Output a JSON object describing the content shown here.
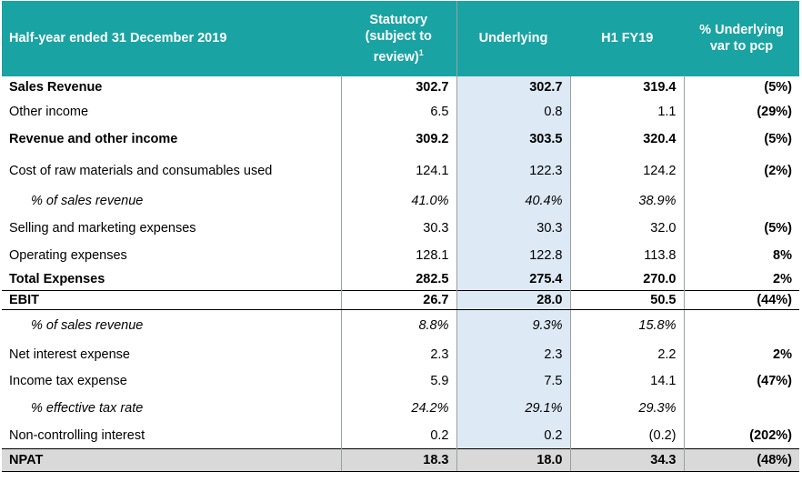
{
  "header": {
    "col0": "Half-year ended 31 December 2019",
    "col1_lines": [
      "Statutory",
      "(subject to",
      "review)"
    ],
    "col1_sup": "1",
    "col2": "Underlying",
    "col3": "H1 FY19",
    "col4_lines": [
      "% Underlying",
      "var to pcp"
    ]
  },
  "rows": [
    {
      "label": "Sales Revenue",
      "statutory": "302.7",
      "underlying": "302.7",
      "prior": "319.4",
      "var": "(5%)",
      "style": "bold"
    },
    {
      "label": "Other income",
      "statutory": "6.5",
      "underlying": "0.8",
      "prior": "1.1",
      "var": "(29%)",
      "style": "normal"
    },
    {
      "label": "Revenue and other income",
      "statutory": "309.2",
      "underlying": "303.5",
      "prior": "320.4",
      "var": "(5%)",
      "style": "bold"
    },
    {
      "label": "Cost of raw materials and consumables used",
      "statutory": "124.1",
      "underlying": "122.3",
      "prior": "124.2",
      "var": "(2%)",
      "style": "normal"
    },
    {
      "label": "% of sales revenue",
      "statutory": "41.0%",
      "underlying": "40.4%",
      "prior": "38.9%",
      "var": "",
      "style": "italic"
    },
    {
      "label": "Selling and marketing expenses",
      "statutory": "30.3",
      "underlying": "30.3",
      "prior": "32.0",
      "var": "(5%)",
      "style": "normal"
    },
    {
      "label": "Operating expenses",
      "statutory": "128.1",
      "underlying": "122.8",
      "prior": "113.8",
      "var": "8%",
      "style": "normal"
    },
    {
      "label": "Total Expenses",
      "statutory": "282.5",
      "underlying": "275.4",
      "prior": "270.0",
      "var": "2%",
      "style": "bold"
    },
    {
      "label": "EBIT",
      "statutory": "26.7",
      "underlying": "28.0",
      "prior": "50.5",
      "var": "(44%)",
      "style": "ebit"
    },
    {
      "label": "% of sales revenue",
      "statutory": "8.8%",
      "underlying": "9.3%",
      "prior": "15.8%",
      "var": "",
      "style": "italic"
    },
    {
      "label": "Net interest expense",
      "statutory": "2.3",
      "underlying": "2.3",
      "prior": "2.2",
      "var": "2%",
      "style": "normal"
    },
    {
      "label": "Income tax expense",
      "statutory": "5.9",
      "underlying": "7.5",
      "prior": "14.1",
      "var": "(47%)",
      "style": "normal"
    },
    {
      "label": "% effective tax rate",
      "statutory": "24.2%",
      "underlying": "29.1%",
      "prior": "29.3%",
      "var": "",
      "style": "italic"
    },
    {
      "label": "Non-controlling interest",
      "statutory": "0.2",
      "underlying": "0.2",
      "prior": "(0.2)",
      "var": "(202%)",
      "style": "normal"
    },
    {
      "label": "NPAT",
      "statutory": "18.3",
      "underlying": "18.0",
      "prior": "34.3",
      "var": "(48%)",
      "style": "npat"
    }
  ]
}
